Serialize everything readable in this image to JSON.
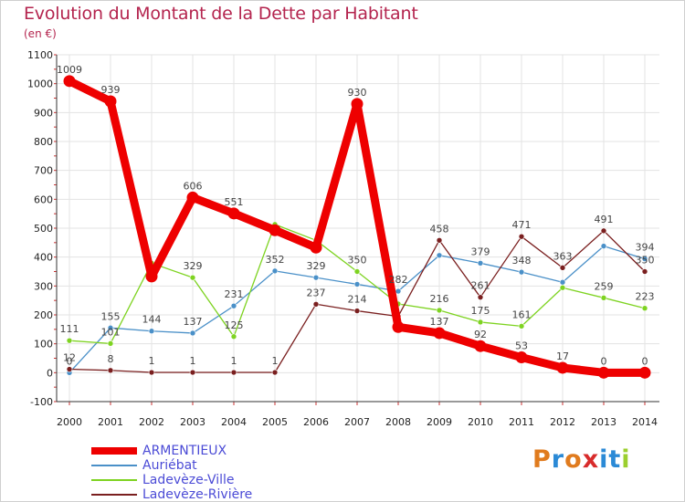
{
  "title": "Evolution du Montant de la Dette par Habitant",
  "subtitle": "(en €)",
  "logo": {
    "text": "Proxiti",
    "letters": [
      {
        "ch": "P",
        "color": "#e07b1e"
      },
      {
        "ch": "r",
        "color": "#2b8ad6"
      },
      {
        "ch": "o",
        "color": "#e07b1e"
      },
      {
        "ch": "x",
        "color": "#d82b2b"
      },
      {
        "ch": "i",
        "color": "#2b8ad6"
      },
      {
        "ch": "t",
        "color": "#2b8ad6"
      },
      {
        "ch": "i",
        "color": "#9bcf2e"
      }
    ]
  },
  "colors": {
    "background": "#ffffff",
    "grid": "#e3e3e3",
    "axis": "#333333",
    "title": "#b4244e",
    "legend_text": "#4b4bd6"
  },
  "chart_data": {
    "type": "line",
    "x": [
      2000,
      2001,
      2002,
      2003,
      2004,
      2005,
      2006,
      2007,
      2008,
      2009,
      2010,
      2011,
      2012,
      2013,
      2014
    ],
    "ylim": [
      -100,
      1100
    ],
    "yticks": [
      -100,
      0,
      100,
      200,
      300,
      400,
      500,
      600,
      700,
      800,
      900,
      1000,
      1100
    ],
    "grid": true,
    "legend_position": "bottom-left",
    "series": [
      {
        "name": "ARMENTIEUX",
        "color": "#ee0000",
        "emphasis": true,
        "values": [
          1009,
          939,
          333,
          606,
          551,
          493,
          433,
          930,
          158,
          137,
          92,
          53,
          17,
          0,
          0
        ],
        "labels": [
          "1009",
          "939",
          "",
          "606",
          "551",
          "",
          "",
          "930",
          "",
          "137",
          "92",
          "53",
          "17",
          "0",
          "0"
        ]
      },
      {
        "name": "Auriébat",
        "color": "#4a90c8",
        "values": [
          0,
          155,
          144,
          137,
          231,
          352,
          329,
          306,
          282,
          406,
          379,
          348,
          313,
          438,
          394
        ],
        "labels": [
          "0",
          "155",
          "144",
          "137",
          "231",
          "352",
          "329",
          "",
          "282",
          "",
          "379",
          "348",
          "",
          "",
          "394"
        ]
      },
      {
        "name": "Ladevèze-Ville",
        "color": "#7ed321",
        "values": [
          111,
          101,
          379,
          329,
          125,
          513,
          458,
          350,
          238,
          216,
          175,
          161,
          294,
          259,
          223
        ],
        "labels": [
          "111",
          "101",
          "",
          "329",
          "125",
          "",
          "",
          "350",
          "",
          "216",
          "175",
          "161",
          "",
          "259",
          "223"
        ]
      },
      {
        "name": "Ladevèze-Rivière",
        "color": "#7a1f1f",
        "values": [
          12,
          8,
          1,
          1,
          1,
          1,
          237,
          214,
          195,
          458,
          261,
          471,
          363,
          491,
          350
        ],
        "labels": [
          "12",
          "8",
          "1",
          "1",
          "1",
          "1",
          "237",
          "214",
          "",
          "458",
          "261",
          "471",
          "363",
          "491",
          "350"
        ]
      }
    ]
  }
}
